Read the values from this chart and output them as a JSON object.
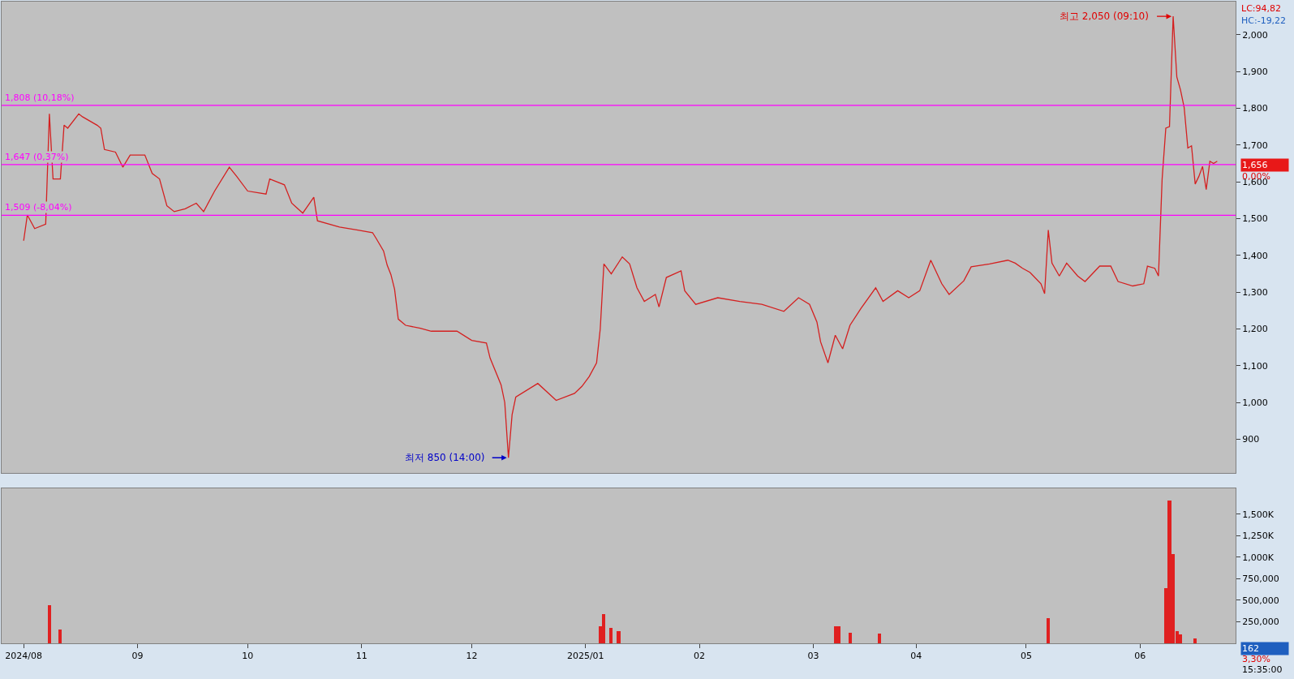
{
  "chart_data": [
    {
      "type": "line",
      "xlim": [
        "2024-07-26",
        "2025-06-27"
      ],
      "ylim": [
        808,
        2090
      ],
      "tick_labels": "y",
      "grid": false,
      "marker": "none",
      "line_style": "solid",
      "yticks": [
        900,
        {
          "value": 1000,
          "label": "1,000"
        },
        {
          "value": 1100,
          "label": "1,100"
        },
        {
          "value": 1200,
          "label": "1,200"
        },
        {
          "value": 1300,
          "label": "1,300"
        },
        {
          "value": 1400,
          "label": "1,400"
        },
        {
          "value": 1500,
          "label": "1,500"
        },
        {
          "value": 1600,
          "label": "1,600"
        },
        {
          "value": 1700,
          "label": "1,700"
        },
        {
          "value": 1800,
          "label": "1,800"
        },
        {
          "value": 1900,
          "label": "1,900"
        },
        {
          "value": 2000,
          "label": "2,000"
        }
      ],
      "x": [
        "2024-08-01",
        "2024-08-02",
        "2024-08-04",
        "2024-08-07",
        "2024-08-08",
        "2024-08-09",
        "2024-08-11",
        "2024-08-12",
        "2024-08-13",
        "2024-08-16",
        "2024-08-17",
        "2024-08-21",
        "2024-08-22",
        "2024-08-23",
        "2024-08-26",
        "2024-08-28",
        "2024-08-30",
        "2024-09-03",
        "2024-09-05",
        "2024-09-07",
        "2024-09-09",
        "2024-09-11",
        "2024-09-14",
        "2024-09-17",
        "2024-09-19",
        "2024-09-22",
        "2024-09-26",
        "2024-09-28",
        "2024-10-01",
        "2024-10-06",
        "2024-10-07",
        "2024-10-11",
        "2024-10-13",
        "2024-10-16",
        "2024-10-19",
        "2024-10-20",
        "2024-10-26",
        "2024-10-31",
        "2024-11-04",
        "2024-11-05",
        "2024-11-07",
        "2024-11-08",
        "2024-11-09",
        "2024-11-10",
        "2024-11-11",
        "2024-11-13",
        "2024-11-17",
        "2024-11-20",
        "2024-11-23",
        "2024-11-27",
        "2024-12-01",
        "2024-12-05",
        "2024-12-06",
        "2024-12-09",
        "2024-12-10",
        "2024-12-11",
        "2024-12-12",
        "2024-12-13",
        "2024-12-19",
        "2024-12-24",
        "2024-12-29",
        "2024-12-31",
        "2025-01-02",
        "2025-01-04",
        "2025-01-05",
        "2025-01-06",
        "2025-01-08",
        "2025-01-11",
        "2025-01-13",
        "2025-01-15",
        "2025-01-17",
        "2025-01-20",
        "2025-01-21",
        "2025-01-23",
        "2025-01-27",
        "2025-01-28",
        "2025-01-31",
        "2025-02-06",
        "2025-02-12",
        "2025-02-18",
        "2025-02-24",
        "2025-02-28",
        "2025-03-03",
        "2025-03-05",
        "2025-03-06",
        "2025-03-08",
        "2025-03-10",
        "2025-03-12",
        "2025-03-14",
        "2025-03-17",
        "2025-03-21",
        "2025-03-23",
        "2025-03-27",
        "2025-03-30",
        "2025-04-02",
        "2025-04-05",
        "2025-04-08",
        "2025-04-10",
        "2025-04-14",
        "2025-04-16",
        "2025-04-21",
        "2025-04-26",
        "2025-04-28",
        "2025-04-30",
        "2025-05-02",
        "2025-05-05",
        "2025-05-06",
        "2025-05-07",
        "2025-05-08",
        "2025-05-10",
        "2025-05-12",
        "2025-05-15",
        "2025-05-17",
        "2025-05-21",
        "2025-05-24",
        "2025-05-26",
        "2025-05-30",
        "2025-06-02",
        "2025-06-03",
        "2025-06-05",
        "2025-06-06",
        "2025-06-07",
        "2025-06-08",
        "2025-06-09",
        "2025-06-10",
        "2025-06-11",
        "2025-06-12",
        "2025-06-13",
        "2025-06-14",
        "2025-06-15",
        "2025-06-16",
        "2025-06-17",
        "2025-06-18",
        "2025-06-19",
        "2025-06-20",
        "2025-06-21",
        "2025-06-22"
      ],
      "series": [
        {
          "color": "#d42020",
          "values": [
            1440,
            1510,
            1473,
            1485,
            1785,
            1608,
            1608,
            1754,
            1746,
            1785,
            1777,
            1754,
            1746,
            1688,
            1681,
            1640,
            1673,
            1673,
            1623,
            1608,
            1535,
            1519,
            1527,
            1542,
            1519,
            1575,
            1640,
            1615,
            1575,
            1567,
            1608,
            1592,
            1542,
            1515,
            1558,
            1494,
            1477,
            1469,
            1462,
            1446,
            1412,
            1373,
            1348,
            1308,
            1227,
            1210,
            1202,
            1194,
            1194,
            1194,
            1169,
            1162,
            1121,
            1048,
            1000,
            850,
            967,
            1015,
            1052,
            1006,
            1025,
            1044,
            1071,
            1108,
            1200,
            1377,
            1350,
            1396,
            1377,
            1312,
            1275,
            1294,
            1260,
            1340,
            1358,
            1304,
            1267,
            1285,
            1275,
            1267,
            1248,
            1285,
            1267,
            1219,
            1165,
            1108,
            1183,
            1146,
            1210,
            1256,
            1312,
            1275,
            1304,
            1285,
            1304,
            1387,
            1323,
            1294,
            1331,
            1369,
            1377,
            1387,
            1379,
            1365,
            1354,
            1323,
            1296,
            1469,
            1379,
            1344,
            1379,
            1344,
            1329,
            1371,
            1371,
            1329,
            1317,
            1323,
            1371,
            1365,
            1344,
            1608,
            1746,
            1750,
            2050,
            1885,
            1850,
            1802,
            1692,
            1698,
            1594,
            1615,
            1642,
            1579,
            1656,
            1650,
            1656
          ]
        }
      ],
      "ref_lines": [
        {
          "axis": "y",
          "value": 1808,
          "label": "1,808 (10,18%)",
          "color": "#ff00ff"
        },
        {
          "axis": "y",
          "value": 1647,
          "label": "1,647 (0,37%)",
          "color": "#ff00ff"
        },
        {
          "axis": "y",
          "value": 1509,
          "label": "1,509 (-8,04%)",
          "color": "#ff00ff"
        }
      ],
      "annotations": [
        {
          "text": "최고 2,050 (09:10)",
          "x": "2025-06-10",
          "y": 2050
        },
        {
          "text": "최저 850 (14:00)",
          "x": "2024-12-11",
          "y": 850
        },
        "LC:94,82",
        "HC:-19,22",
        "1,656",
        "0,00%"
      ]
    },
    {
      "type": "bar",
      "xlim": [
        "2024-07-26",
        "2025-06-27"
      ],
      "ylim": [
        0,
        1800000
      ],
      "grid": false,
      "yticks": [
        {
          "value": 250000,
          "label": "250,000"
        },
        {
          "value": 500000,
          "label": "500,000"
        },
        {
          "value": 750000,
          "label": "750,000"
        },
        {
          "value": 1000000,
          "label": "1,000K"
        },
        {
          "value": 1250000,
          "label": "1,250K"
        },
        {
          "value": 1500000,
          "label": "1,500K"
        }
      ],
      "xticks": [
        {
          "value": "2024-08-01",
          "label": "2024/08"
        },
        {
          "value": "2024-09-01",
          "label": "09"
        },
        {
          "value": "2024-10-01",
          "label": "10"
        },
        {
          "value": "2024-11-01",
          "label": "11"
        },
        {
          "value": "2024-12-01",
          "label": "12"
        },
        {
          "value": "2025-01-01",
          "label": "2025/01"
        },
        {
          "value": "2025-02-01",
          "label": "02"
        },
        {
          "value": "2025-03-04",
          "label": "03"
        },
        {
          "value": "2025-04-01",
          "label": "04"
        },
        {
          "value": "2025-05-01",
          "label": "05"
        },
        {
          "value": "2025-06-01",
          "label": "06"
        }
      ],
      "x": [
        "2024-08-08",
        "2024-08-11",
        "2025-01-05",
        "2025-01-06",
        "2025-01-08",
        "2025-01-10",
        "2025-03-10",
        "2025-03-11",
        "2025-03-14",
        "2025-03-22",
        "2025-05-07",
        "2025-06-08",
        "2025-06-09",
        "2025-06-10",
        "2025-06-11",
        "2025-06-12",
        "2025-06-16"
      ],
      "series": [
        {
          "color": "#e02020",
          "values": [
            440000,
            160000,
            200000,
            340000,
            180000,
            140000,
            200000,
            200000,
            120000,
            110000,
            290000,
            640000,
            1660000,
            1040000,
            140000,
            100000,
            60000
          ]
        }
      ],
      "annotations": [
        "162",
        "3,30%",
        "15:35:00"
      ]
    }
  ]
}
